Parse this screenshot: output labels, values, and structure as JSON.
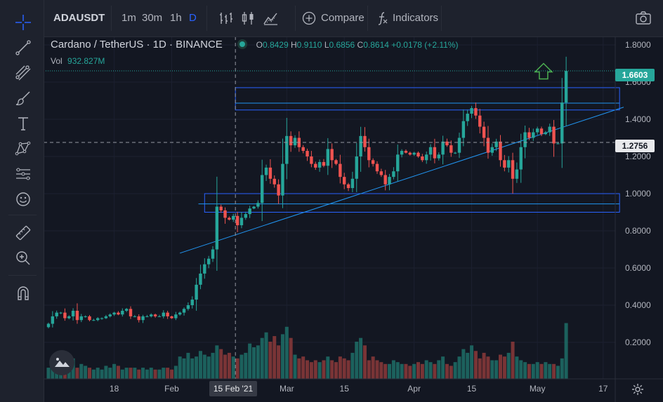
{
  "toolbar": {
    "symbol": "ADAUSDT",
    "intervals": [
      "1m",
      "30m",
      "1h",
      "D"
    ],
    "active_interval": "D",
    "compare_label": "Compare",
    "indicators_label": "Indicators"
  },
  "legend": {
    "title": "Cardano / TetherUS · 1D · BINANCE",
    "o_label": "O",
    "o": "0.8429",
    "h_label": "H",
    "h": "0.9110",
    "l_label": "L",
    "l": "0.6856",
    "c_label": "C",
    "c": "0.8614",
    "change": "+0.0178 (+2.11%)",
    "vol_label": "Vol",
    "vol": "932.827M"
  },
  "price_boxes": {
    "last": "1.6603",
    "crosshair": "1.2756"
  },
  "crosshair_date": "15 Feb '21",
  "colors": {
    "background": "#131722",
    "up": "#26a69a",
    "down": "#ef5350",
    "drawing": "#2962ff",
    "trendline": "#2196f3",
    "arrow": "#4caf50"
  },
  "chart_data": {
    "type": "candlestick",
    "symbol": "ADAUSDT",
    "interval": "1D",
    "y_ticks": [
      0.2,
      0.4,
      0.6,
      0.8,
      1.0,
      1.2,
      1.4,
      1.6,
      1.8
    ],
    "y_tick_labels": [
      "0.2000",
      "0.4000",
      "0.6000",
      "0.8000",
      "1.0000",
      "1.2000",
      "1.4000",
      "1.6000",
      "1.8000"
    ],
    "ylim": [
      0.0,
      1.9
    ],
    "x_ticks": [
      {
        "label": "18",
        "index": 16
      },
      {
        "label": "Feb",
        "index": 30
      },
      {
        "label": "Mar",
        "index": 58
      },
      {
        "label": "15",
        "index": 72
      },
      {
        "label": "Apr",
        "index": 89
      },
      {
        "label": "15",
        "index": 103
      },
      {
        "label": "May",
        "index": 119
      },
      {
        "label": "17",
        "index": 135
      }
    ],
    "closes": [
      0.3,
      0.34,
      0.36,
      0.36,
      0.33,
      0.34,
      0.37,
      0.32,
      0.34,
      0.34,
      0.32,
      0.32,
      0.33,
      0.33,
      0.34,
      0.35,
      0.36,
      0.35,
      0.37,
      0.38,
      0.34,
      0.34,
      0.32,
      0.34,
      0.34,
      0.35,
      0.34,
      0.34,
      0.36,
      0.34,
      0.33,
      0.35,
      0.36,
      0.38,
      0.4,
      0.43,
      0.51,
      0.57,
      0.62,
      0.65,
      0.7,
      0.93,
      0.91,
      0.87,
      0.86,
      0.88,
      0.83,
      0.87,
      0.89,
      0.92,
      0.93,
      0.95,
      1.1,
      1.14,
      1.08,
      1.05,
      0.99,
      1.16,
      1.31,
      1.26,
      1.3,
      1.25,
      1.23,
      1.2,
      1.16,
      1.14,
      1.17,
      1.15,
      1.24,
      1.18,
      1.16,
      1.09,
      1.05,
      1.03,
      1.08,
      1.2,
      1.31,
      1.25,
      1.18,
      1.16,
      1.12,
      1.1,
      1.05,
      1.09,
      1.12,
      1.21,
      1.23,
      1.22,
      1.21,
      1.22,
      1.2,
      1.18,
      1.21,
      1.25,
      1.19,
      1.21,
      1.28,
      1.26,
      1.22,
      1.22,
      1.3,
      1.39,
      1.43,
      1.46,
      1.42,
      1.36,
      1.3,
      1.22,
      1.25,
      1.28,
      1.18,
      1.14,
      1.18,
      1.08,
      1.13,
      1.25,
      1.33,
      1.3,
      1.33,
      1.35,
      1.32,
      1.33,
      1.36,
      1.27,
      1.27,
      1.49,
      1.66
    ],
    "volumes": [
      0.06,
      0.07,
      0.09,
      0.1,
      0.08,
      0.09,
      0.11,
      0.06,
      0.08,
      0.07,
      0.06,
      0.05,
      0.06,
      0.05,
      0.07,
      0.06,
      0.08,
      0.07,
      0.05,
      0.06,
      0.06,
      0.06,
      0.05,
      0.06,
      0.05,
      0.06,
      0.05,
      0.05,
      0.06,
      0.06,
      0.05,
      0.07,
      0.12,
      0.11,
      0.14,
      0.11,
      0.12,
      0.15,
      0.13,
      0.12,
      0.14,
      0.18,
      0.16,
      0.13,
      0.14,
      0.12,
      0.11,
      0.13,
      0.14,
      0.19,
      0.17,
      0.18,
      0.22,
      0.25,
      0.2,
      0.23,
      0.18,
      0.24,
      0.28,
      0.22,
      0.13,
      0.11,
      0.12,
      0.1,
      0.09,
      0.1,
      0.09,
      0.1,
      0.12,
      0.1,
      0.09,
      0.12,
      0.11,
      0.1,
      0.14,
      0.2,
      0.22,
      0.18,
      0.1,
      0.12,
      0.1,
      0.09,
      0.08,
      0.08,
      0.1,
      0.09,
      0.08,
      0.08,
      0.07,
      0.08,
      0.09,
      0.08,
      0.1,
      0.09,
      0.08,
      0.1,
      0.12,
      0.08,
      0.07,
      0.09,
      0.12,
      0.16,
      0.14,
      0.18,
      0.15,
      0.11,
      0.14,
      0.12,
      0.1,
      0.1,
      0.13,
      0.12,
      0.14,
      0.2,
      0.12,
      0.1,
      0.09,
      0.08,
      0.08,
      0.09,
      0.08,
      0.09,
      0.08,
      0.08,
      0.07,
      0.11,
      0.3
    ]
  }
}
